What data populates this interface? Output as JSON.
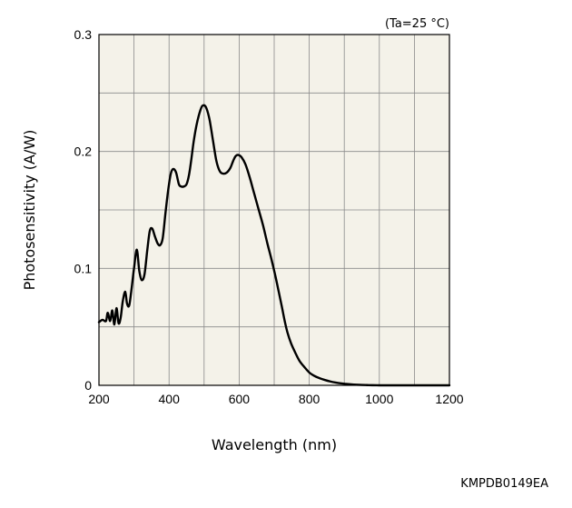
{
  "chart_data": {
    "type": "line",
    "title": "",
    "xlabel": "Wavelength (nm)",
    "ylabel": "Photosensitivity (A/W)",
    "condition": "(Ta=25 °C)",
    "code": "KMPDB0149EA",
    "xlim": [
      200,
      1200
    ],
    "ylim": [
      0,
      0.3
    ],
    "x_ticks": [
      200,
      400,
      600,
      800,
      1000,
      1200
    ],
    "x_tick_labels": [
      "200",
      "400",
      "600",
      "800",
      "1000",
      "1200"
    ],
    "y_ticks": [
      0,
      0.1,
      0.2,
      0.3
    ],
    "y_tick_labels": [
      "0",
      "0.1",
      "0.2",
      "0.3"
    ],
    "x_grid": [
      200,
      300,
      400,
      500,
      600,
      700,
      800,
      900,
      1000,
      1100,
      1200
    ],
    "y_grid": [
      0,
      0.05,
      0.1,
      0.15,
      0.2,
      0.25,
      0.3
    ],
    "grid": true,
    "plot_background": "#f4f2e9",
    "line_color": "#000000",
    "series": [
      {
        "x": [
          200,
          210,
          220,
          225,
          232,
          238,
          244,
          250,
          256,
          262,
          268,
          275,
          280,
          286,
          292,
          300,
          308,
          315,
          322,
          330,
          338,
          345,
          352,
          360,
          368,
          375,
          382,
          390,
          398,
          405,
          412,
          420,
          428,
          435,
          442,
          450,
          457,
          463,
          470,
          478,
          487,
          495,
          505,
          515,
          525,
          535,
          545,
          555,
          565,
          575,
          583,
          590,
          598,
          607,
          618,
          630,
          642,
          655,
          668,
          680,
          692,
          703,
          713,
          722,
          730,
          738,
          748,
          760,
          772,
          785,
          800,
          815,
          830,
          845,
          860,
          875,
          890,
          905,
          920,
          935,
          950,
          965,
          980,
          1000,
          1020,
          1040,
          1060,
          1080,
          1100,
          1120,
          1140,
          1160,
          1180,
          1200
        ],
        "y": [
          0.054,
          0.056,
          0.055,
          0.062,
          0.055,
          0.064,
          0.052,
          0.066,
          0.053,
          0.058,
          0.072,
          0.08,
          0.07,
          0.068,
          0.08,
          0.1,
          0.116,
          0.098,
          0.09,
          0.095,
          0.116,
          0.132,
          0.134,
          0.127,
          0.121,
          0.12,
          0.126,
          0.148,
          0.168,
          0.181,
          0.185,
          0.182,
          0.172,
          0.17,
          0.17,
          0.172,
          0.18,
          0.192,
          0.208,
          0.222,
          0.233,
          0.239,
          0.238,
          0.228,
          0.21,
          0.192,
          0.183,
          0.181,
          0.182,
          0.186,
          0.192,
          0.196,
          0.197,
          0.195,
          0.189,
          0.178,
          0.165,
          0.151,
          0.137,
          0.122,
          0.108,
          0.094,
          0.08,
          0.067,
          0.055,
          0.045,
          0.036,
          0.028,
          0.021,
          0.016,
          0.011,
          0.008,
          0.006,
          0.0045,
          0.0033,
          0.0024,
          0.0017,
          0.0012,
          0.0008,
          0.0005,
          0.0003,
          0.0002,
          0.0001,
          0.0,
          0.0,
          0.0,
          0.0,
          0.0,
          0.0,
          0.0,
          0.0,
          0.0,
          0.0,
          0.0
        ]
      }
    ]
  }
}
